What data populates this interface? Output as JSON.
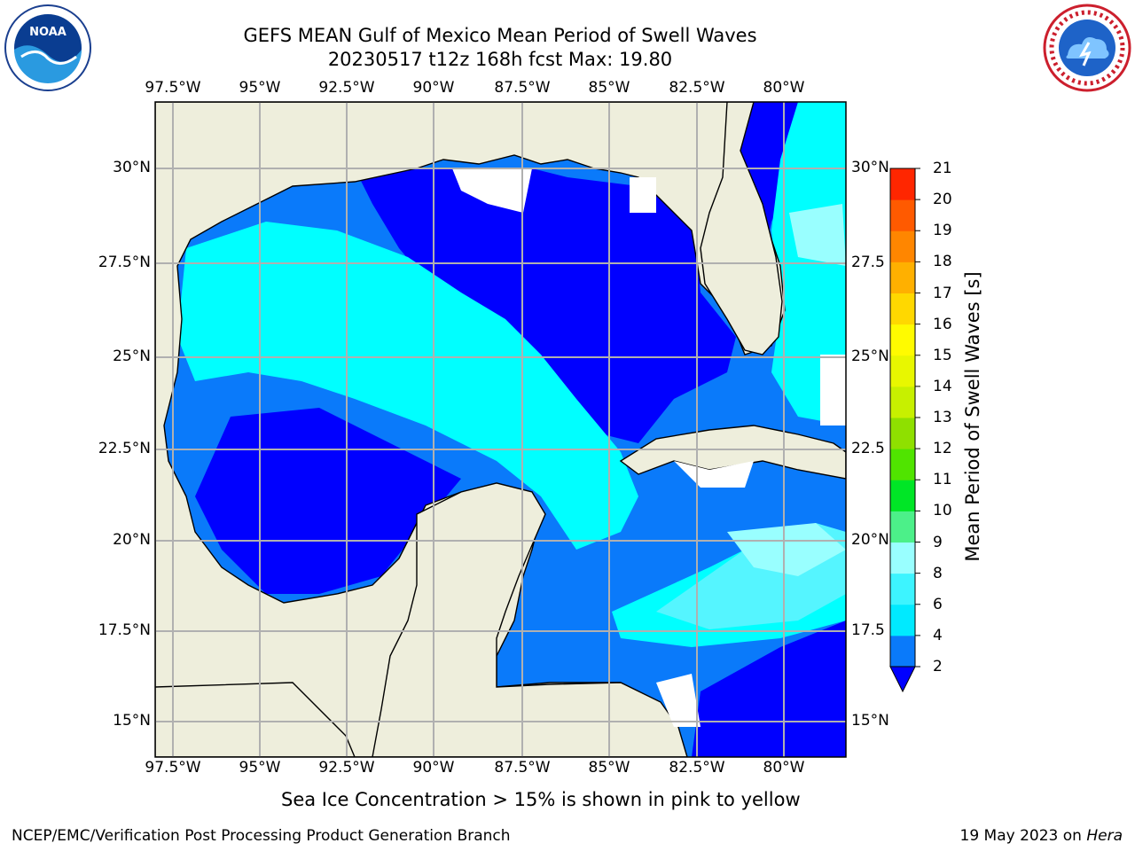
{
  "title_line1": "GEFS MEAN Gulf of Mexico Mean Period of Swell Waves",
  "title_line2": "20230517 t12z 168h fcst   Max: 19.80",
  "lon_labels": [
    "97.5°W",
    "95°W",
    "92.5°W",
    "90°W",
    "87.5°W",
    "85°W",
    "82.5°W",
    "80°W"
  ],
  "lat_labels_left": [
    "30°N",
    "27.5°N",
    "25°N",
    "22.5°N",
    "20°N",
    "17.5°N",
    "15°N"
  ],
  "lat_labels_right": [
    "30°N",
    "27.5",
    "25°N",
    "22.5",
    "20°N",
    "17.5",
    "15°N"
  ],
  "colorbar": {
    "title": "Mean Period of Swell Waves [s]",
    "levels": [
      "2",
      "4",
      "6",
      "8",
      "9",
      "10",
      "11",
      "12",
      "13",
      "14",
      "15",
      "16",
      "17",
      "18",
      "19",
      "20",
      "21"
    ],
    "colors": [
      "#0a7afa",
      "#00eaff",
      "#3df4ff",
      "#99ffff",
      "#4cf089",
      "#00e626",
      "#50e400",
      "#8fe000",
      "#c7f000",
      "#e8f700",
      "#fffb00",
      "#ffd800",
      "#ffb000",
      "#ff8600",
      "#ff5a00",
      "#ff2600",
      "#ff0000"
    ],
    "under_color": "#0000ff"
  },
  "note": "Sea Ice Concentration > 15% is shown in pink to yellow",
  "footer_left": "NCEP/EMC/Verification Post Processing Product Generation Branch",
  "footer_right_prefix": "19 May 2023 on ",
  "footer_right_machine": "Hera",
  "colors": {
    "land": "#eeeedc",
    "band_2_4": "#0a7afa",
    "band_lt2": "#0000ff",
    "band_4_6": "#00ffff",
    "band_6_8": "#55f5ff",
    "band_8_9": "#99ffff",
    "grid": "#b0b0b0"
  },
  "logos": {
    "left": "noaa-logo",
    "right": "nws-logo"
  }
}
